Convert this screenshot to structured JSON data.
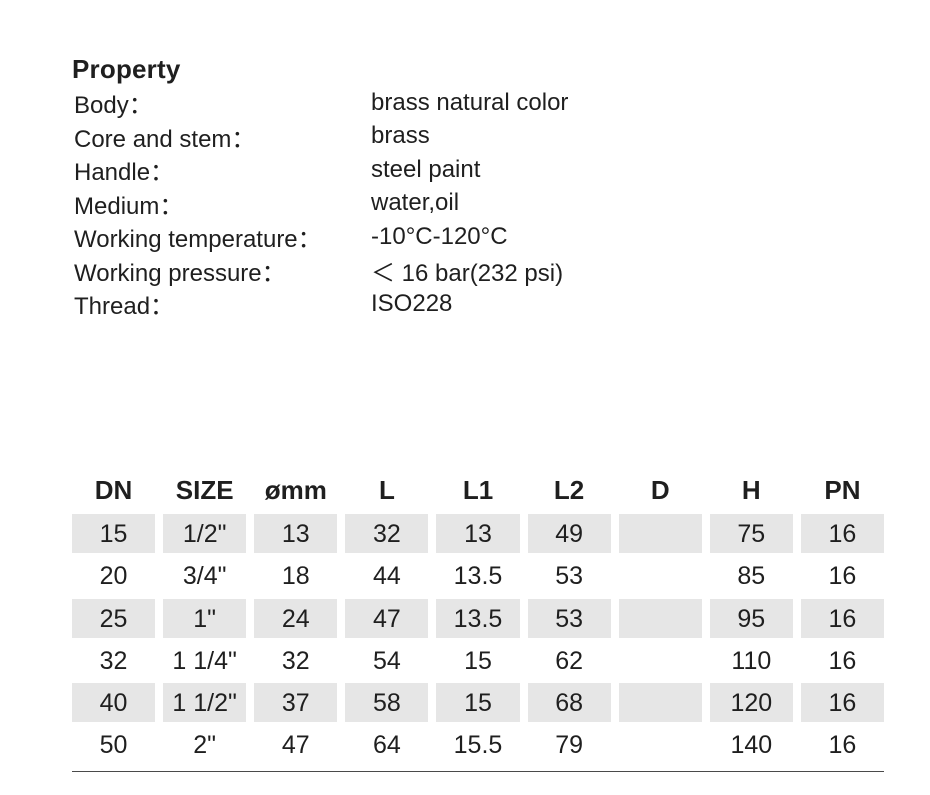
{
  "property": {
    "title": "Property",
    "rows": [
      {
        "label": "Body：",
        "value": "brass natural color"
      },
      {
        "label": "Core and stem：",
        "value": "brass"
      },
      {
        "label": "Handle：",
        "value": "steel paint"
      },
      {
        "label": "Medium：",
        "value": "water,oil"
      },
      {
        "label": "Working temperature：",
        "value": "-10°C-120°C"
      },
      {
        "label": "Working pressure：",
        "value": "＜ 16 bar(232 psi)"
      },
      {
        "label": "Thread：",
        "value": "ISO228"
      }
    ]
  },
  "table": {
    "headers": [
      "DN",
      "SIZE",
      "ømm",
      "L",
      "L1",
      "L2",
      "D",
      "H",
      "PN"
    ],
    "rows": [
      [
        "15",
        "1/2\"",
        "13",
        "32",
        "13",
        "49",
        "",
        "75",
        "16"
      ],
      [
        "20",
        "3/4\"",
        "18",
        "44",
        "13.5",
        "53",
        "",
        "85",
        "16"
      ],
      [
        "25",
        "1\"",
        "24",
        "47",
        "13.5",
        "53",
        "",
        "95",
        "16"
      ],
      [
        "32",
        "1 1/4\"",
        "32",
        "54",
        "15",
        "62",
        "",
        "110",
        "16"
      ],
      [
        "40",
        "1 1/2\"",
        "37",
        "58",
        "15",
        "68",
        "",
        "120",
        "16"
      ],
      [
        "50",
        "2\"",
        "47",
        "64",
        "15.5",
        "79",
        "",
        "140",
        "16"
      ]
    ]
  }
}
